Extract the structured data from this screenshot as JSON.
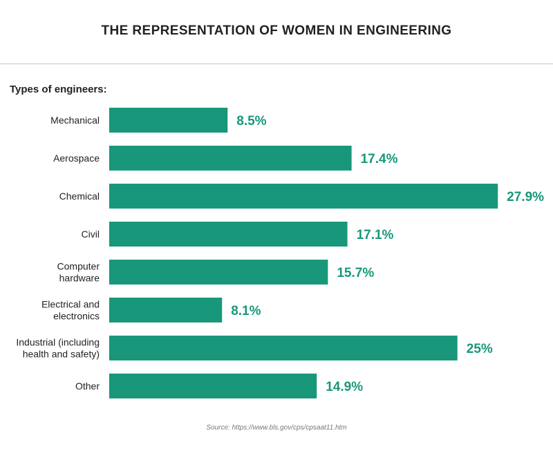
{
  "colors": {
    "bar": "#18977a",
    "value_label": "#18977a",
    "text": "#222222"
  },
  "chart_data": {
    "type": "bar",
    "orientation": "horizontal",
    "title": "THE REPRESENTATION OF WOMEN IN ENGINEERING",
    "category_axis_label": "Types of engineers:",
    "categories": [
      "Mechanical",
      "Aerospace",
      "Chemical",
      "Civil",
      "Computer hardware",
      "Electrical and electronics",
      "Industrial (including health and safety)",
      "Other"
    ],
    "category_lines": [
      [
        "Mechanical"
      ],
      [
        "Aerospace"
      ],
      [
        "Chemical"
      ],
      [
        "Civil"
      ],
      [
        "Computer",
        "hardware"
      ],
      [
        "Electrical and",
        "electronics"
      ],
      [
        "Industrial (including",
        "health and safety)"
      ],
      [
        "Other"
      ]
    ],
    "values": [
      8.5,
      17.4,
      27.9,
      17.1,
      15.7,
      8.1,
      25,
      14.9
    ],
    "value_labels": [
      "8.5%",
      "17.4%",
      "27.9%",
      "17.1%",
      "15.7%",
      "8.1%",
      "25%",
      "14.9%"
    ],
    "unit": "%",
    "grid": false,
    "legend": "none",
    "source": "Source: https://www.bls.gov/cps/cpsaat11.htm"
  }
}
